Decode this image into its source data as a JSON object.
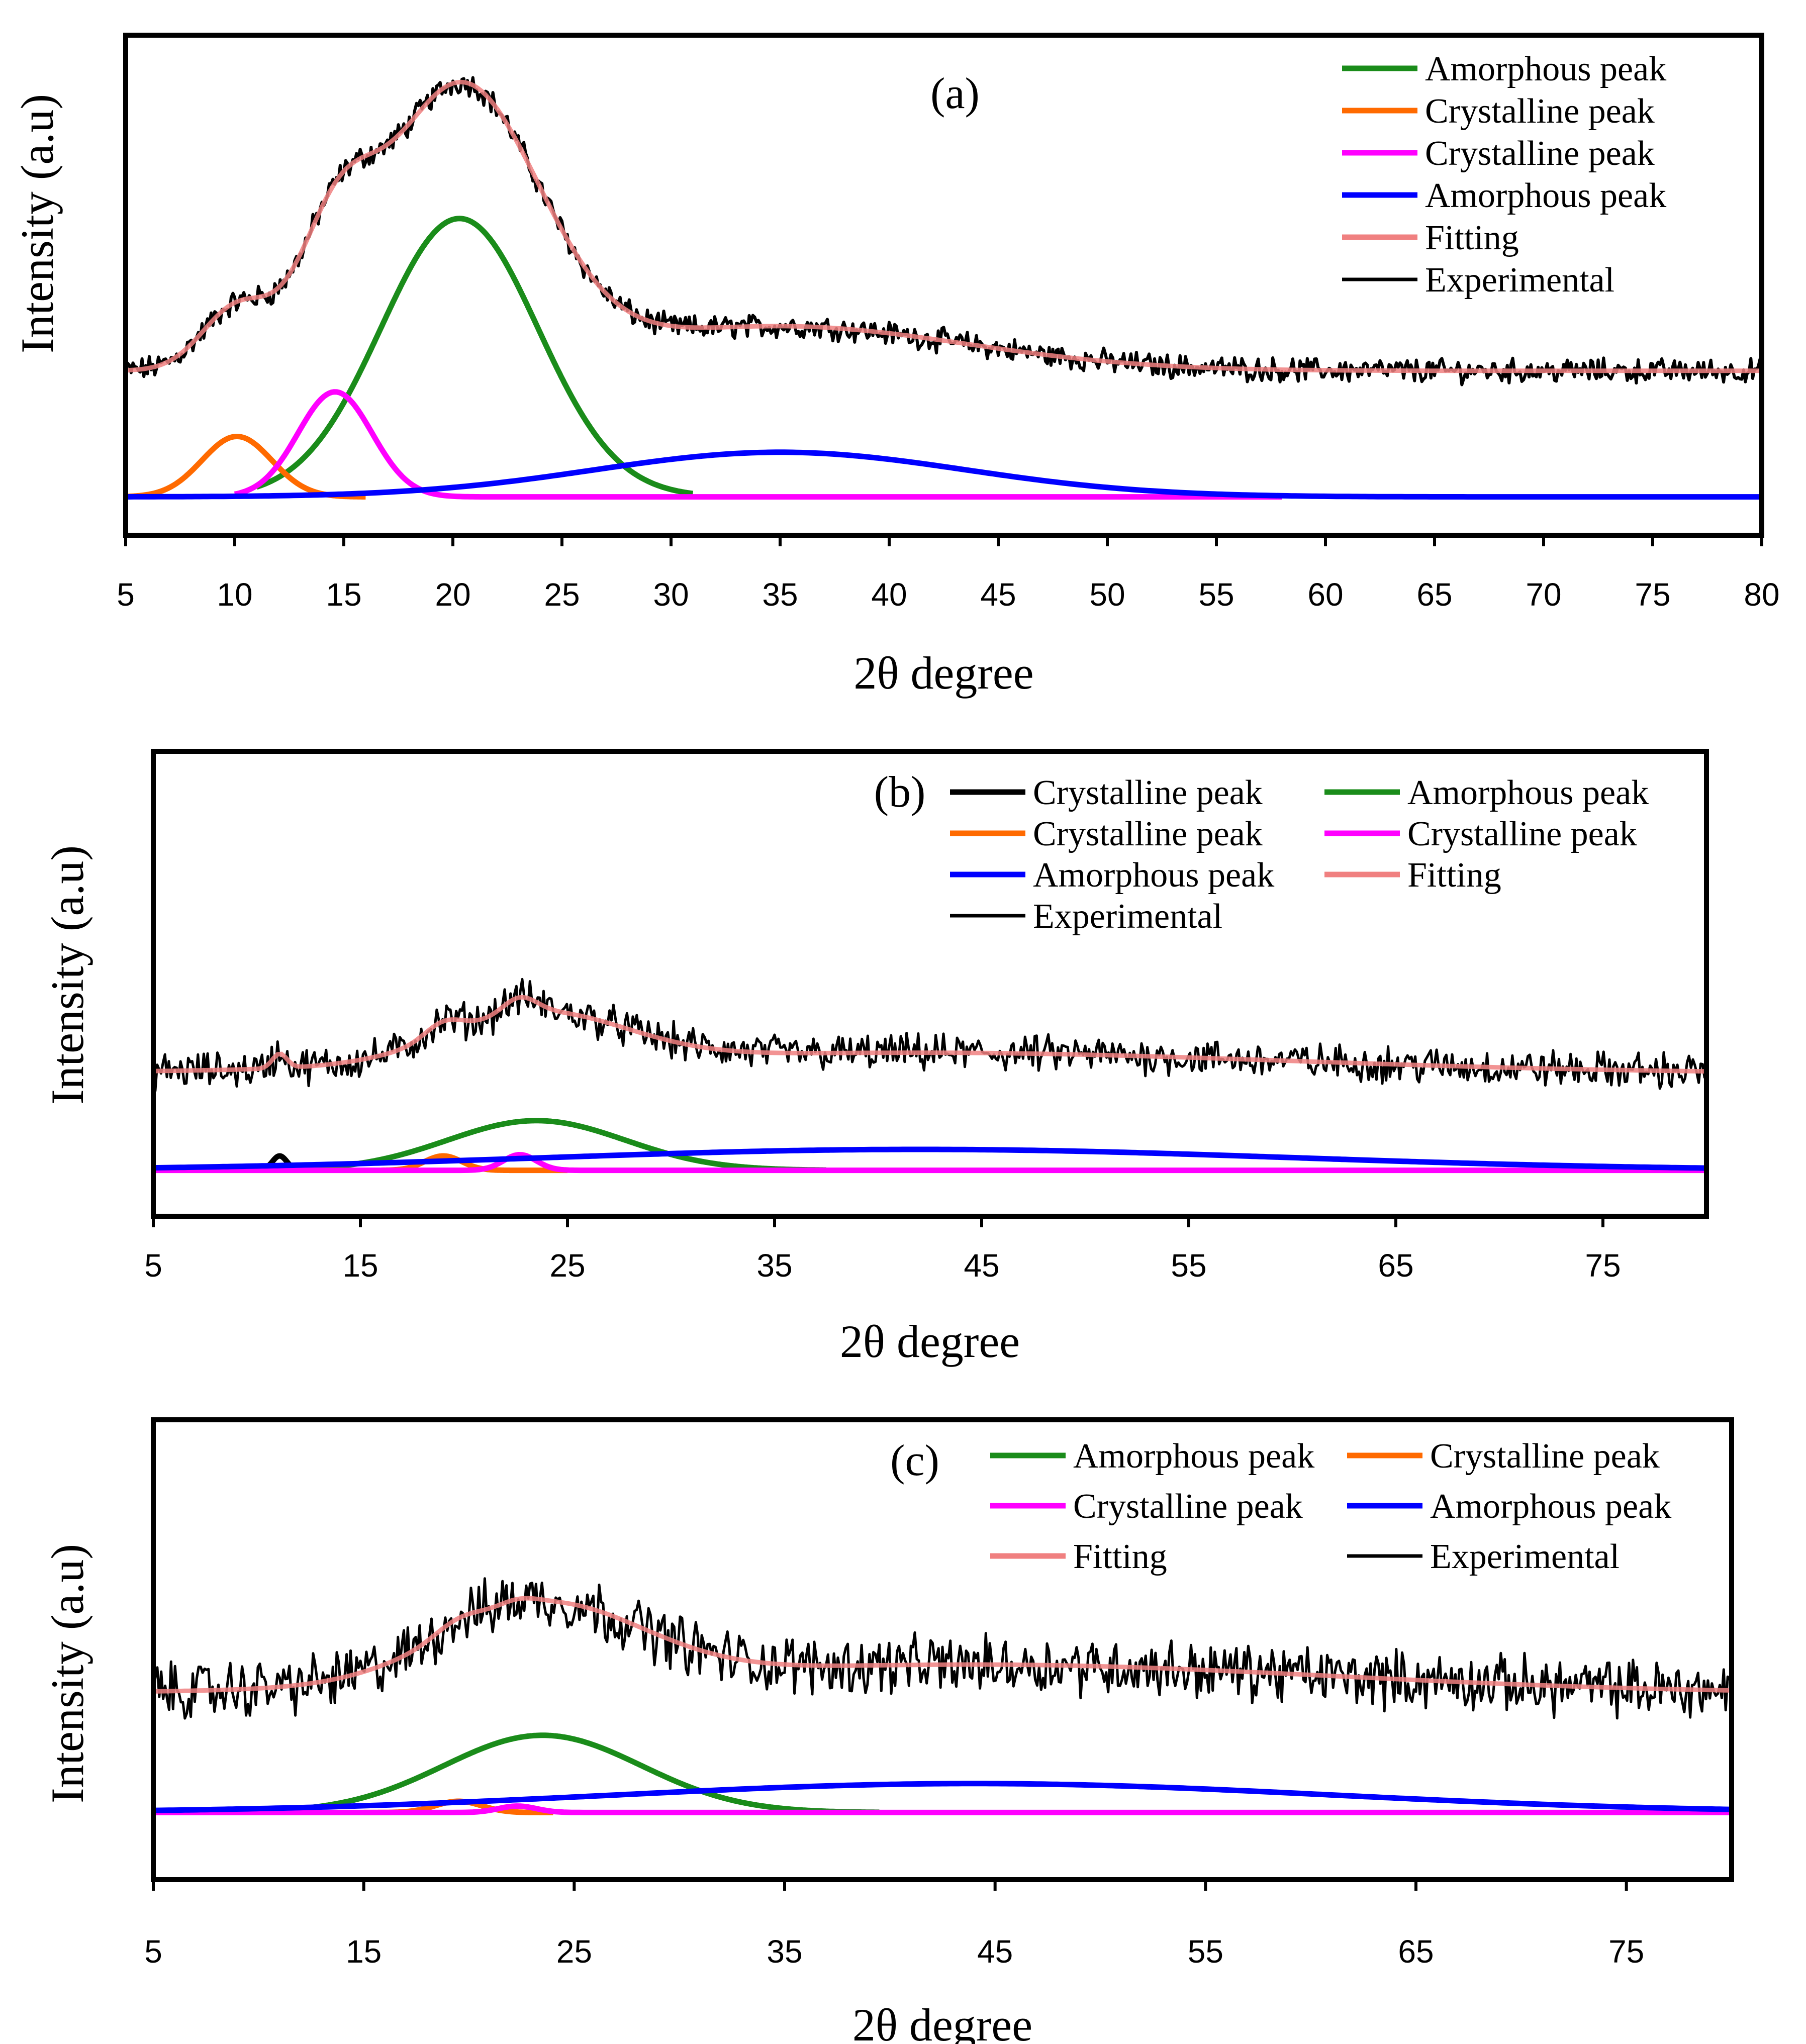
{
  "figure": {
    "panels": [
      "(a)",
      "(b)",
      "(c)"
    ]
  },
  "colors": {
    "amorphous_green": "#1a8c1a",
    "crystalline_orange": "#ff6a00",
    "crystalline_magenta": "#ff00ff",
    "amorphous_blue": "#0000ff",
    "fitting": "#f08080",
    "experimental": "#000000",
    "crystalline_black": "#000000"
  },
  "chart_data": [
    {
      "type": "line",
      "panel_label": "(a)",
      "xlabel": "2θ degree",
      "ylabel": "Intensity (a.u)",
      "xlim": [
        5,
        80
      ],
      "ylim": [
        0,
        1
      ],
      "xticks": [
        "5",
        "10",
        "15",
        "20",
        "25",
        "30",
        "35",
        "40",
        "45",
        "50",
        "55",
        "60",
        "65",
        "70",
        "75",
        "80"
      ],
      "grid": false,
      "legend_position": "top-right",
      "legend_columns": 1,
      "legend": [
        "Amorphous peak",
        "Crystalline peak",
        "Crystalline peak",
        "Amorphous peak",
        "Fitting",
        "Experimental"
      ],
      "series": [
        {
          "name": "Amorphous peak",
          "color": "#1a8c1a",
          "model": "gaussian",
          "center": 20.3,
          "height": 0.53,
          "sigma": 3.6,
          "baseline": 0.03,
          "range": [
            11,
            31
          ]
        },
        {
          "name": "Crystalline peak",
          "color": "#ff6a00",
          "model": "gaussian",
          "center": 10.1,
          "height": 0.115,
          "sigma": 1.6,
          "baseline": 0.03,
          "range": [
            5,
            16
          ]
        },
        {
          "name": "Crystalline peak",
          "color": "#ff00ff",
          "model": "gaussian",
          "center": 14.6,
          "height": 0.2,
          "sigma": 1.7,
          "baseline": 0.03,
          "range": [
            10,
            58
          ]
        },
        {
          "name": "Amorphous peak",
          "color": "#0000ff",
          "model": "gaussian",
          "center": 35,
          "height": 0.085,
          "sigma": 8.5,
          "baseline": 0.03,
          "range": [
            5,
            80
          ]
        },
        {
          "name": "Fitting",
          "color": "#f08080",
          "model": "sum",
          "offset": 0.27,
          "range": [
            5,
            80
          ]
        },
        {
          "name": "Experimental",
          "color": "#000000",
          "model": "noisy",
          "noise": 0.018,
          "range": [
            5,
            80
          ]
        }
      ]
    },
    {
      "type": "line",
      "panel_label": "(b)",
      "xlabel": "2θ degree",
      "ylabel": "Intensity (a.u)",
      "xlim": [
        5,
        80
      ],
      "ylim": [
        0,
        1
      ],
      "xticks": [
        "5",
        "15",
        "25",
        "35",
        "45",
        "55",
        "65",
        "75"
      ],
      "grid": false,
      "legend_position": "top-right",
      "legend_columns": 2,
      "legend": [
        "Crystalline peak",
        "Amorphous peak",
        "Crystalline peak",
        "Crystalline peak",
        "Amorphous peak",
        "Fitting",
        "Experimental"
      ],
      "series": [
        {
          "name": "Crystalline peak",
          "color": "#000000",
          "model": "gaussian",
          "center": 11.1,
          "height": 0.055,
          "sigma": 0.35,
          "baseline": 0.07,
          "range": [
            10,
            12.2
          ]
        },
        {
          "name": "Amorphous peak",
          "color": "#1a8c1a",
          "model": "gaussian",
          "center": 23.5,
          "height": 0.19,
          "sigma": 4.3,
          "baseline": 0.07,
          "range": [
            12,
            37.5
          ]
        },
        {
          "name": "Crystalline peak",
          "color": "#ff6a00",
          "model": "gaussian",
          "center": 19,
          "height": 0.055,
          "sigma": 0.9,
          "baseline": 0.07,
          "range": [
            16,
            25
          ]
        },
        {
          "name": "Crystalline peak",
          "color": "#ff00ff",
          "model": "gaussian",
          "center": 22.7,
          "height": 0.06,
          "sigma": 0.8,
          "baseline": 0.07,
          "range": [
            5,
            80
          ]
        },
        {
          "name": "Amorphous peak",
          "color": "#0000ff",
          "model": "gaussian",
          "center": 42,
          "height": 0.08,
          "sigma": 18,
          "baseline": 0.07,
          "range": [
            5,
            80
          ]
        },
        {
          "name": "Fitting",
          "color": "#f08080",
          "model": "sum",
          "offset": 0.44,
          "range": [
            5,
            80
          ]
        },
        {
          "name": "Experimental",
          "color": "#000000",
          "model": "noisy",
          "noise": 0.055,
          "range": [
            5,
            80
          ]
        }
      ]
    },
    {
      "type": "line",
      "panel_label": "(c)",
      "xlabel": "2θ degree",
      "ylabel": "Intensity (a.u)",
      "xlim": [
        5,
        80
      ],
      "ylim": [
        0,
        1
      ],
      "xticks": [
        "5",
        "15",
        "25",
        "35",
        "45",
        "55",
        "65",
        "75"
      ],
      "grid": false,
      "legend_position": "top-right",
      "legend_columns": 2,
      "legend": [
        "Amorphous peak",
        "Crystalline peak",
        "Crystalline peak",
        "Amorphous peak",
        "Fitting",
        "Experimental"
      ],
      "series": [
        {
          "name": "Amorphous peak",
          "color": "#1a8c1a",
          "model": "gaussian",
          "center": 23.5,
          "height": 0.24,
          "sigma": 4.7,
          "baseline": 0.09,
          "range": [
            12,
            39.5
          ]
        },
        {
          "name": "Crystalline peak",
          "color": "#ff6a00",
          "model": "gaussian",
          "center": 19.5,
          "height": 0.035,
          "sigma": 1.1,
          "baseline": 0.09,
          "range": [
            15,
            24
          ]
        },
        {
          "name": "Crystalline peak",
          "color": "#ff00ff",
          "model": "gaussian",
          "center": 22.3,
          "height": 0.02,
          "sigma": 0.9,
          "baseline": 0.09,
          "range": [
            5,
            80
          ]
        },
        {
          "name": "Amorphous peak",
          "color": "#0000ff",
          "model": "gaussian",
          "center": 44,
          "height": 0.09,
          "sigma": 17,
          "baseline": 0.09,
          "range": [
            5,
            80
          ]
        },
        {
          "name": "Fitting",
          "color": "#f08080",
          "model": "sum",
          "offset": 0.46,
          "range": [
            5,
            80
          ]
        },
        {
          "name": "Experimental",
          "color": "#000000",
          "model": "noisy",
          "noise": 0.07,
          "range": [
            5,
            80
          ]
        }
      ]
    }
  ]
}
